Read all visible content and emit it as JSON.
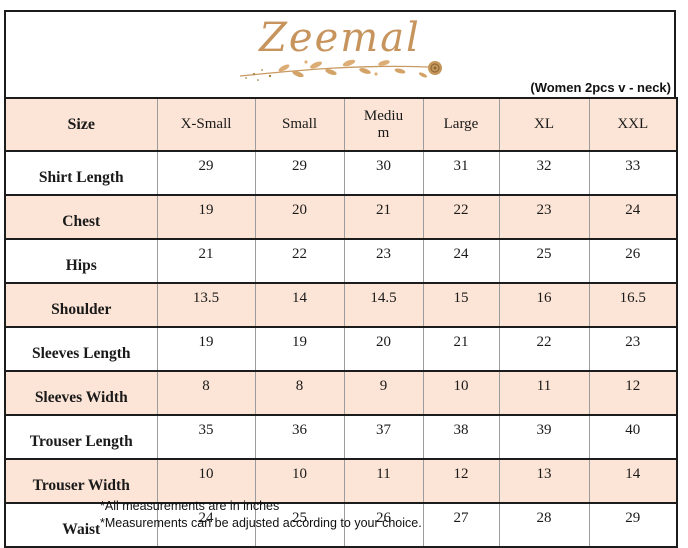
{
  "brand": {
    "name": "Zeemal"
  },
  "subtitle": "(Women 2pcs v - neck)",
  "table": {
    "size_header": "Size",
    "columns": [
      "X-Small",
      "Small",
      "Medium",
      "Large",
      "XL",
      "XXL"
    ],
    "rows": [
      {
        "label": "Shirt Length",
        "values": [
          "29",
          "29",
          "30",
          "31",
          "32",
          "33"
        ]
      },
      {
        "label": "Chest",
        "values": [
          "19",
          "20",
          "21",
          "22",
          "23",
          "24"
        ]
      },
      {
        "label": "Hips",
        "values": [
          "21",
          "22",
          "23",
          "24",
          "25",
          "26"
        ]
      },
      {
        "label": "Shoulder",
        "values": [
          "13.5",
          "14",
          "14.5",
          "15",
          "16",
          "16.5"
        ]
      },
      {
        "label": "Sleeves Length",
        "values": [
          "19",
          "19",
          "20",
          "21",
          "22",
          "23"
        ]
      },
      {
        "label": "Sleeves Width",
        "values": [
          "8",
          "8",
          "9",
          "10",
          "11",
          "12"
        ]
      },
      {
        "label": "Trouser Length",
        "values": [
          "35",
          "36",
          "37",
          "38",
          "39",
          "40"
        ]
      },
      {
        "label": "Trouser Width",
        "values": [
          "10",
          "10",
          "11",
          "12",
          "13",
          "14"
        ]
      },
      {
        "label": "Waist",
        "values": [
          "24",
          "25",
          "26",
          "27",
          "28",
          "29"
        ]
      }
    ]
  },
  "footnotes": [
    "*All measurements are in inches",
    "*Measurements can be adjusted according to your choice."
  ],
  "colors": {
    "header_fill": "#FCE5D6",
    "row_alt_fill": "#FCE5D6",
    "logo_gold": "#C6945C",
    "border_dark": "#1C1C1C",
    "border_gray": "#9C9C9C"
  }
}
